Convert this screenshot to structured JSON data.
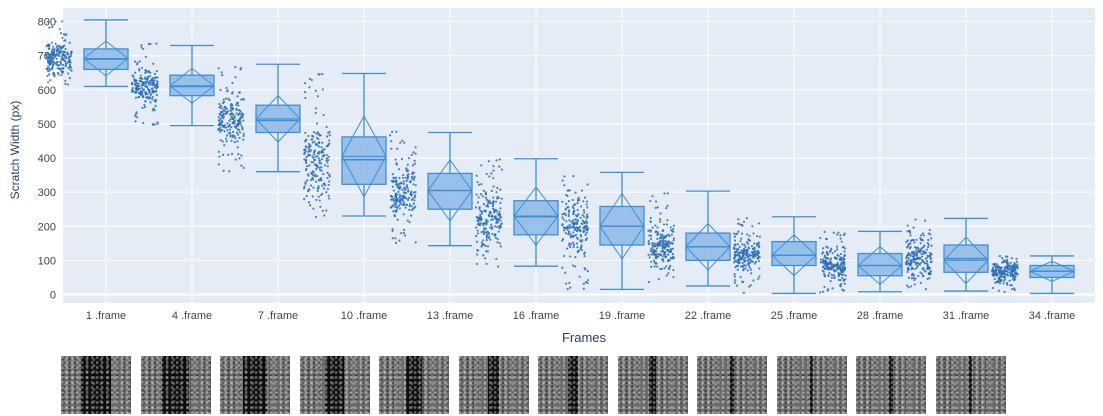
{
  "chart_data": {
    "type": "box",
    "xlabel": "Frames",
    "ylabel": "Scratch Width (px)",
    "ylim": [
      -25,
      840
    ],
    "yticks": [
      0,
      100,
      200,
      300,
      400,
      500,
      600,
      700,
      800
    ],
    "grid": true,
    "legend": "none",
    "colors": {
      "plot_bg": "#e5ecf6",
      "box_fill": "#8fbbe8",
      "box_line": "#3f8fd8",
      "points": "#2a6fb8",
      "grid": "#ffffff"
    },
    "categories": [
      "1 .frame",
      "4 .frame",
      "7 .frame",
      "10 .frame",
      "13 .frame",
      "16 .frame",
      "19 .frame",
      "22 .frame",
      "25 .frame",
      "28 .frame",
      "31 .frame",
      "34 .frame"
    ],
    "boxes": [
      {
        "min": 610,
        "q1": 660,
        "median": 690,
        "mean": 692,
        "q3": 720,
        "max": 805,
        "pmin": 615,
        "pmax": 805
      },
      {
        "min": 495,
        "q1": 583,
        "median": 610,
        "mean": 612,
        "q3": 643,
        "max": 730,
        "pmin": 495,
        "pmax": 755
      },
      {
        "min": 360,
        "q1": 475,
        "median": 510,
        "mean": 515,
        "q3": 555,
        "max": 675,
        "pmin": 355,
        "pmax": 680
      },
      {
        "min": 230,
        "q1": 323,
        "median": 395,
        "mean": 405,
        "q3": 462,
        "max": 648,
        "pmin": 225,
        "pmax": 648
      },
      {
        "min": 143,
        "q1": 250,
        "median": 305,
        "mean": 305,
        "q3": 355,
        "max": 475,
        "pmin": 140,
        "pmax": 478
      },
      {
        "min": 83,
        "q1": 175,
        "median": 228,
        "mean": 230,
        "q3": 275,
        "max": 398,
        "pmin": 80,
        "pmax": 398
      },
      {
        "min": 15,
        "q1": 145,
        "median": 200,
        "mean": 200,
        "q3": 258,
        "max": 358,
        "pmin": 15,
        "pmax": 355
      },
      {
        "min": 25,
        "q1": 100,
        "median": 140,
        "mean": 140,
        "q3": 180,
        "max": 303,
        "pmin": 25,
        "pmax": 303
      },
      {
        "min": 3,
        "q1": 85,
        "median": 115,
        "mean": 115,
        "q3": 155,
        "max": 228,
        "pmin": 3,
        "pmax": 228
      },
      {
        "min": 8,
        "q1": 55,
        "median": 85,
        "mean": 85,
        "q3": 120,
        "max": 185,
        "pmin": 5,
        "pmax": 185
      },
      {
        "min": 10,
        "q1": 65,
        "median": 105,
        "mean": 100,
        "q3": 145,
        "max": 223,
        "pmin": 10,
        "pmax": 223
      },
      {
        "min": 3,
        "q1": 50,
        "median": 68,
        "mean": 68,
        "q3": 85,
        "max": 113,
        "pmin": 3,
        "pmax": 113
      }
    ]
  },
  "thumbnails": [
    {
      "frame": "1 .frame",
      "gap": 0.44
    },
    {
      "frame": "4 .frame",
      "gap": 0.38
    },
    {
      "frame": "7 .frame",
      "gap": 0.34
    },
    {
      "frame": "10 .frame",
      "gap": 0.28
    },
    {
      "frame": "13 .frame",
      "gap": 0.22
    },
    {
      "frame": "16 .frame",
      "gap": 0.17
    },
    {
      "frame": "19 .frame",
      "gap": 0.13
    },
    {
      "frame": "22 .frame",
      "gap": 0.09
    },
    {
      "frame": "25 .frame",
      "gap": 0.07
    },
    {
      "frame": "28 .frame",
      "gap": 0.05
    },
    {
      "frame": "31 .frame",
      "gap": 0.06
    },
    {
      "frame": "34 .frame",
      "gap": 0.03
    }
  ]
}
